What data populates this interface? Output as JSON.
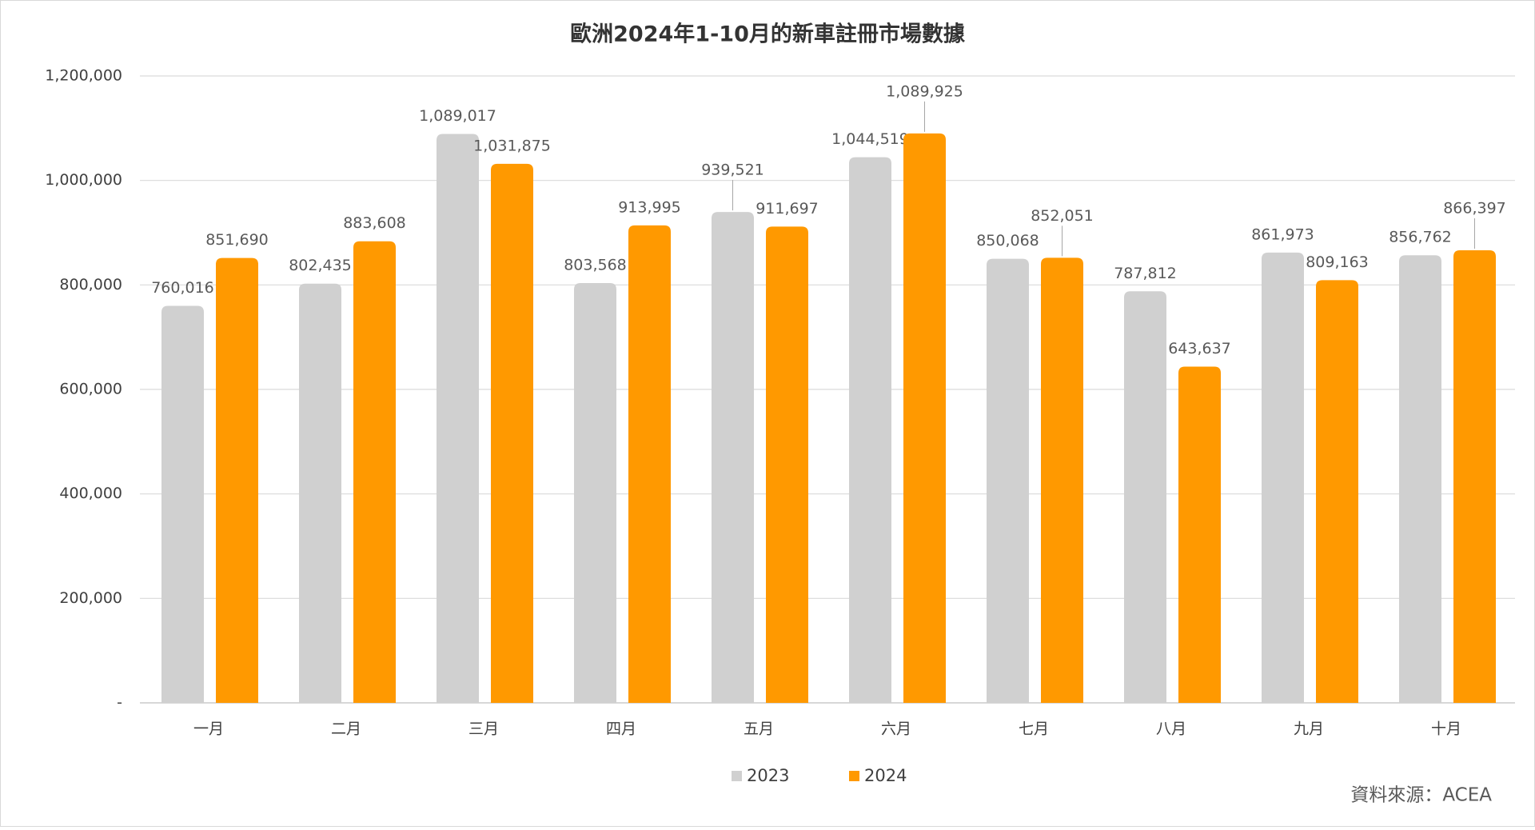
{
  "chart_data": {
    "type": "bar",
    "title": "歐洲2024年1-10月的新車註冊市場數據",
    "categories": [
      "一月",
      "二月",
      "三月",
      "四月",
      "五月",
      "六月",
      "七月",
      "八月",
      "九月",
      "十月"
    ],
    "series": [
      {
        "name": "2023",
        "color": "#d0d0d0",
        "values": [
          760016,
          802435,
          1089017,
          803568,
          939521,
          1044519,
          850068,
          787812,
          861973,
          856762
        ],
        "value_labels": [
          "760,016",
          "802,435",
          "1,089,017",
          "803,568",
          "939,521",
          "1,044,519",
          "850,068",
          "787,812",
          "861,973",
          "856,762"
        ]
      },
      {
        "name": "2024",
        "color": "#ff9900",
        "values": [
          851690,
          883608,
          1031875,
          913995,
          911697,
          1089925,
          852051,
          643637,
          809163,
          866397
        ],
        "value_labels": [
          "851,690",
          "883,608",
          "1,031,875",
          "913,995",
          "911,697",
          "1,089,925",
          "852,051",
          "643,637",
          "809,163",
          "866,397"
        ]
      }
    ],
    "ylim": [
      0,
      1200000
    ],
    "yticks": [
      {
        "value": 0,
        "label": "-"
      },
      {
        "value": 200000,
        "label": "200,000"
      },
      {
        "value": 400000,
        "label": "400,000"
      },
      {
        "value": 600000,
        "label": "600,000"
      },
      {
        "value": 800000,
        "label": "800,000"
      },
      {
        "value": 1000000,
        "label": "1,000,000"
      },
      {
        "value": 1200000,
        "label": "1,200,000"
      }
    ],
    "grid": true,
    "legend": "bottom",
    "source": "資料來源：ACEA"
  }
}
